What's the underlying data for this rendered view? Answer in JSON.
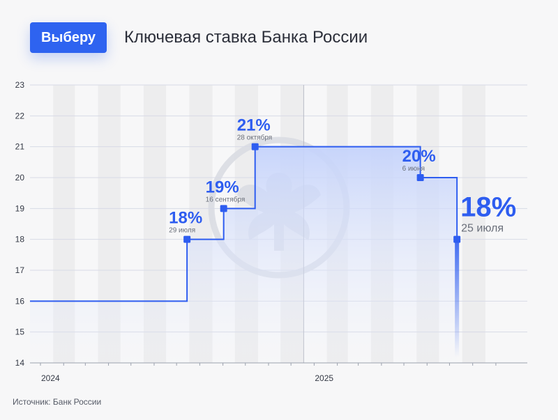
{
  "header": {
    "logo_text": "Выберу",
    "title": "Ключевая ставка Банка России"
  },
  "footer": {
    "source": "Источник: Банк России"
  },
  "colors": {
    "line": "#2e5df0",
    "fill": "#c9d6fb",
    "band": "#e9e9eb",
    "grid": "#d7dae6",
    "watermark": "#d9dbe2"
  },
  "chart_data": {
    "type": "line",
    "step": true,
    "title": "Ключевая ставка Банка России",
    "xlabel": "",
    "ylabel": "",
    "ylim": [
      14,
      23
    ],
    "yticks": [
      14,
      15,
      16,
      17,
      18,
      19,
      20,
      21,
      22,
      23
    ],
    "xticks": [
      "2024",
      "2025"
    ],
    "x_range": [
      "2024-01-01",
      "2025-09-30"
    ],
    "grid": true,
    "series": [
      {
        "values": [
          {
            "x": "2024-01-01",
            "y": 16
          },
          {
            "x": "2024-07-29",
            "y": 18
          },
          {
            "x": "2024-09-16",
            "y": 19
          },
          {
            "x": "2024-10-28",
            "y": 21
          },
          {
            "x": "2025-06-06",
            "y": 20
          },
          {
            "x": "2025-07-25",
            "y": 18
          }
        ]
      }
    ],
    "annotations": [
      {
        "date": "2024-07-29",
        "value": 18,
        "pct": "18%",
        "label": "29 июля"
      },
      {
        "date": "2024-09-16",
        "value": 19,
        "pct": "19%",
        "label": "16 сентября"
      },
      {
        "date": "2024-10-28",
        "value": 21,
        "pct": "21%",
        "label": "28 октября"
      },
      {
        "date": "2025-06-06",
        "value": 20,
        "pct": "20%",
        "label": "6 июня"
      },
      {
        "date": "2025-07-25",
        "value": 18,
        "pct": "18%",
        "label": "25 июля",
        "highlight": true
      }
    ]
  }
}
